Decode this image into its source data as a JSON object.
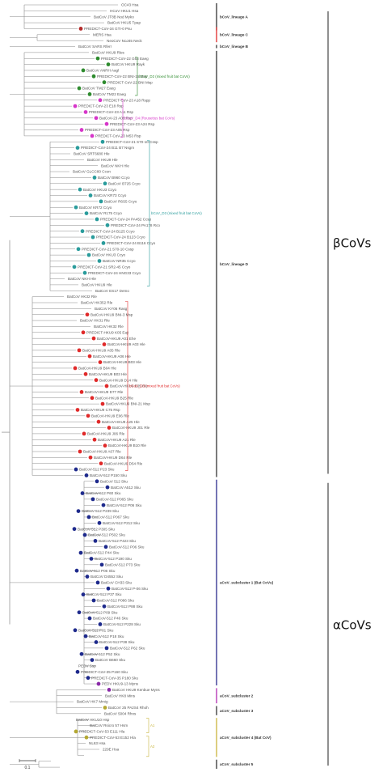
{
  "leaves": [
    {
      "label": "OC43 Hsa",
      "dot": ""
    },
    {
      "label": "HCoV HKU1 Hsa",
      "dot": ""
    },
    {
      "label": "BatCoV JT8B Nod Myko",
      "dot": ""
    },
    {
      "label": "BatCoV HKU5 Tpap",
      "dot": ""
    },
    {
      "label": "PREDICT-CoV-34 GTI-0 Psu",
      "dot": "brown"
    },
    {
      "label": "MERS Hsa",
      "dot": ""
    },
    {
      "label": "NeoCoV NoJ45 Neck",
      "dot": ""
    },
    {
      "label": "BatCoV SARS Rferr",
      "dot": ""
    },
    {
      "label": "BatCoV HKU9 Rles",
      "dot": ""
    },
    {
      "label": "PREDICT-CoV-22 G63 Eaeg",
      "dot": "green"
    },
    {
      "label": "BatCoV HKU9 Rayk",
      "dot": "green"
    },
    {
      "label": "BatCoV ANRH Aagl",
      "dot": "green"
    },
    {
      "label": "PREDICT-CoV-22 BNI-15 Msp",
      "dot": "green"
    },
    {
      "label": "PREDICT-CoV-22 BNI Msp",
      "dot": "green"
    },
    {
      "label": "BatCoV TM27 Eaeg",
      "dot": "green"
    },
    {
      "label": "BatCoV TM22 Eaeg",
      "dot": "green"
    },
    {
      "label": "PREDICT-CoV-23 A18 Rspp",
      "dot": "magenta"
    },
    {
      "label": "PREDICT-CoV-23 E18 Rsp",
      "dot": "magenta"
    },
    {
      "label": "PREDICT-CoV-23 A11 Rsp",
      "dot": "magenta"
    },
    {
      "label": "BatCoV-23 A08 Rsp",
      "dot": "magenta"
    },
    {
      "label": "PREDICT-CoV-23 A24 Rsp",
      "dot": "magenta"
    },
    {
      "label": "PREDICT-CoV-23 A05 Rsp",
      "dot": "magenta"
    },
    {
      "label": "PREDICT-CoV-23 M53 Rsp",
      "dot": "magenta"
    },
    {
      "label": "PREDICT-CoV-21 S70-10 Cssp",
      "dot": "teal"
    },
    {
      "label": "PREDICT-CoV-24 B11 B7 Nsgm",
      "dot": "teal"
    },
    {
      "label": "BatCoV SRT6680 Hle",
      "dot": ""
    },
    {
      "label": "BatCoV HKU9 Hle",
      "dot": ""
    },
    {
      "label": "BatCoV NKH Hle",
      "dot": ""
    },
    {
      "label": "BatCoV GLCC80 Ccon",
      "dot": ""
    },
    {
      "label": "BatCoV B960 Ccyo",
      "dot": "teal"
    },
    {
      "label": "BatCoV B725 Ccyo",
      "dot": "teal"
    },
    {
      "label": "BatCoV HKU3 Ccyo",
      "dot": "teal"
    },
    {
      "label": "BatCoV KR73 Ccyo",
      "dot": "teal"
    },
    {
      "label": "BatCoV R6S5 Ccyo",
      "dot": "teal"
    },
    {
      "label": "BatCoV KR72 Ccyo",
      "dot": "teal"
    },
    {
      "label": "BatCoV R175 Ccyo",
      "dot": "teal"
    },
    {
      "label": "PREDICT-CoV-24 PA452 Ccsp",
      "dot": "teal"
    },
    {
      "label": "PREDICT-CoV-24 PA178 Rco",
      "dot": "teal"
    },
    {
      "label": "PREDICT-CoV-24 B125 Ccyo",
      "dot": "teal"
    },
    {
      "label": "PREDICT-CoV-24 B123 Ccyo",
      "dot": "teal"
    },
    {
      "label": "PREDICT-CoV-24 B116 Ccyo",
      "dot": "teal"
    },
    {
      "label": "PREDICT-CoV-21 S70-10 Cssp",
      "dot": "teal"
    },
    {
      "label": "BatCoV HKU3 Ccyo",
      "dot": "teal"
    },
    {
      "label": "BatCoV NR35 Ccyo",
      "dot": "teal"
    },
    {
      "label": "PREDICT-CoV-21 SR2-45 Ccyo",
      "dot": "teal"
    },
    {
      "label": "PREDICT-CoV-24 HNG33 Ccyo",
      "dot": "teal"
    },
    {
      "label": "BatCoV NKH Hle",
      "dot": ""
    },
    {
      "label": "BatCoV HKU9 Hle",
      "dot": ""
    },
    {
      "label": "BatCoV ES17 Demo",
      "dot": ""
    },
    {
      "label": "BatCoV HK32 Rle",
      "dot": ""
    },
    {
      "label": "BatCoV HK352 Rle",
      "dot": ""
    },
    {
      "label": "BatCoV KY06 Rasg",
      "dot": ""
    },
    {
      "label": "BatCoV-HKU9 BNI-3 Msp",
      "dot": "red"
    },
    {
      "label": "BatCoV HK31 Rle",
      "dot": ""
    },
    {
      "label": "BatCoV HK32 Rle",
      "dot": ""
    },
    {
      "label": "PREDICT-HKU9 K05 Eaji",
      "dot": "red"
    },
    {
      "label": "BatCoV-HKU9 A01 Ehe",
      "dot": "red"
    },
    {
      "label": "BatCoV-HKU9 A03 Hle",
      "dot": "red"
    },
    {
      "label": "BatCoV-HKU9 A05 Rle",
      "dot": "red"
    },
    {
      "label": "BatCoV-HKU9 A06 Hle",
      "dot": "red"
    },
    {
      "label": "BatCoV-HKU9 B03 Hle",
      "dot": "red"
    },
    {
      "label": "BatCoV-HKU9 B04 Hle",
      "dot": "red"
    },
    {
      "label": "BatCoV-HKU9 B03 Hle",
      "dot": "red"
    },
    {
      "label": "BatCoV-HKU9 D14 Hle",
      "dot": "red"
    },
    {
      "label": "BatCoV-HKU9 E05 Rle",
      "dot": "red"
    },
    {
      "label": "BatCoV-HKU9 D77 Rle",
      "dot": "red"
    },
    {
      "label": "BatCoV-HKU9 B25 Rle",
      "dot": "red"
    },
    {
      "label": "BatCoV-HKU9 BNI-21 Msp",
      "dot": "red"
    },
    {
      "label": "BatCoV-HKU9 C75 Rsp",
      "dot": "red"
    },
    {
      "label": "BatCoV-HKU9 E06 Rle",
      "dot": "red"
    },
    {
      "label": "BatCoV-HKU9 A25 Hle",
      "dot": "red"
    },
    {
      "label": "BatCoV-HKU9 J01 Rle",
      "dot": "red"
    },
    {
      "label": "BatCoV-HKU9 J06 Rle",
      "dot": "red"
    },
    {
      "label": "BatCoV-HKU9 A21 Rle",
      "dot": "red"
    },
    {
      "label": "BatCoV-HKU9 B10 Rle",
      "dot": "red"
    },
    {
      "label": "BatCoV-HKU9 A07 Rle",
      "dot": "red"
    },
    {
      "label": "BatCoV-HKU9 D64 Rle",
      "dot": "red"
    },
    {
      "label": "BatCoV-HKU9 D54 Rle",
      "dot": "red"
    },
    {
      "label": "BatCoV-512 P23 Sku",
      "dot": "navy"
    },
    {
      "label": "BatCoV-512 P150 Sku",
      "dot": "navy"
    },
    {
      "label": "BatCoV 512 Sku",
      "dot": "navy"
    },
    {
      "label": "BatCoV A512 Sku",
      "dot": "navy"
    },
    {
      "label": "BatCoV-512 P60 Sku",
      "dot": "navy"
    },
    {
      "label": "BatCoV-512 P065 Sku",
      "dot": "navy"
    },
    {
      "label": "BatCoV-512 P06 Sku",
      "dot": "navy"
    },
    {
      "label": "BatCoV-512 P239 Sku",
      "dot": "navy"
    },
    {
      "label": "BatCoV-512 P067 Sku",
      "dot": "navy"
    },
    {
      "label": "BatCoV-512 P212 Sku",
      "dot": "navy"
    },
    {
      "label": "BatCoV-512 P305 Sku",
      "dot": "navy"
    },
    {
      "label": "BatCoV-512 P502 Sku",
      "dot": "navy"
    },
    {
      "label": "BatCoV-512 P423 Sku",
      "dot": "navy"
    },
    {
      "label": "BatCoV-512 P06 Sku",
      "dot": "navy"
    },
    {
      "label": "BatCoV-512 P44 Sku",
      "dot": "navy"
    },
    {
      "label": "BatCoV-512 P190 Sku",
      "dot": "navy"
    },
    {
      "label": "BatCoV-512 P73 Sku",
      "dot": "navy"
    },
    {
      "label": "BatCoV-512 P06 Sku",
      "dot": "navy"
    },
    {
      "label": "BatCoV D4552 Sku",
      "dot": "navy"
    },
    {
      "label": "BatCoV CH33 Sku",
      "dot": "navy"
    },
    {
      "label": "BatCoV-512 P-06 Sku",
      "dot": "navy"
    },
    {
      "label": "BatCoV-512 P37 Sku",
      "dot": "navy"
    },
    {
      "label": "BatCoV-512 P086 Sku",
      "dot": "navy"
    },
    {
      "label": "BatCoV-512 P88 Sku",
      "dot": "navy"
    },
    {
      "label": "BatCoV-512 P09 Sku",
      "dot": "navy"
    },
    {
      "label": "BatCoV-512 P46 Sku",
      "dot": "navy"
    },
    {
      "label": "BatCoV-512 P228 Sku",
      "dot": "navy"
    },
    {
      "label": "BatCoV-512 P81 Sku",
      "dot": "navy"
    },
    {
      "label": "BatCoV-512 P18 Sku",
      "dot": "navy"
    },
    {
      "label": "BatCoV-512 P38 Sku",
      "dot": "navy"
    },
    {
      "label": "BatCoV-512 P62 Sku",
      "dot": "navy"
    },
    {
      "label": "BatCoV-512 P52 Sku",
      "dot": "navy"
    },
    {
      "label": "BatCoV B660 Sku",
      "dot": "navy"
    },
    {
      "label": "PEDV Ssp",
      "dot": ""
    },
    {
      "label": "PREDICT-CoV-35 P160 Sku",
      "dot": "navy"
    },
    {
      "label": "PREDICT-CoV-35 P180 Sku",
      "dot": "navy"
    },
    {
      "label": "PEDV HKU9-13 Myns",
      "dot": "purple"
    },
    {
      "label": "BatCoV HKU9 Kenbue Myns",
      "dot": "purple"
    },
    {
      "label": "BatCoV HK8 Mins",
      "dot": ""
    },
    {
      "label": "BatCoV HK7 Mmig",
      "dot": ""
    },
    {
      "label": "BatCoV 25 PA2S4 Rhoh",
      "dot": "olive"
    },
    {
      "label": "BatCoV 5004 Rhns",
      "dot": ""
    },
    {
      "label": "BatCoV HKU10 Hsp",
      "dot": ""
    },
    {
      "label": "BatCoV Rsicro 57 Hsm",
      "dot": ""
    },
    {
      "label": "PREDICT-CoV-53 E111 Hla",
      "dot": "olive"
    },
    {
      "label": "PREDICT-CoV-53 E152 Hla",
      "dot": "olive"
    },
    {
      "label": "NL63 Hsa",
      "dot": ""
    },
    {
      "label": "229E Hsa",
      "dot": ""
    }
  ],
  "clades": [
    {
      "label": "bCoV_D2 (mixed fruit bat CoVs)",
      "color": "#2e8b2e",
      "first": 9,
      "last": 15,
      "suffix": ""
    },
    {
      "label": "bCoV_D4 (Rousettus bat CoVs)",
      "color": "#d636c9",
      "first": 16,
      "last": 22,
      "suffix": ""
    },
    {
      "label": "bCoV_D3 (mixed fruit bat CoVs)",
      "color": "#2a9c9c",
      "first": 23,
      "last": 47,
      "suffix": ""
    },
    {
      "label": "bCoV_D3 (mixed fruit bat CoVs)",
      "color": "#e02a2a",
      "first": 50,
      "last": 78,
      "suffix": ""
    },
    {
      "label": "",
      "color": "#c8b43c",
      "first": 120,
      "last": 122,
      "suffix": "A1"
    },
    {
      "label": "",
      "color": "#c8b43c",
      "first": 123,
      "last": 126,
      "suffix": "A2"
    }
  ],
  "lineages": [
    {
      "label": "bCoV_lineage A",
      "color": "#333333",
      "first": 0,
      "last": 4
    },
    {
      "label": "bCoV_lineage C",
      "color": "#e02a2a",
      "first": 4,
      "last": 6
    },
    {
      "label": "bCoV_lineage B",
      "color": "#333333",
      "first": 7,
      "last": 7
    },
    {
      "label": "bCoV_lineage D",
      "color": "#333333",
      "first": 8,
      "last": 79
    },
    {
      "label": "aCoV_subcluster 1 (Bat CoVs)",
      "color": "#2a2a8c",
      "first": 80,
      "last": 114
    },
    {
      "label": "aCoV_subcluster 2",
      "color": "#b02ab0",
      "first": 115,
      "last": 117
    },
    {
      "label": "aCoV_subcluster 3",
      "color": "#333333",
      "first": 118,
      "last": 119
    },
    {
      "label": "aCoV_subcluster 4 (Bat CoV)",
      "color": "#c8b43c",
      "first": 120,
      "last": 126
    },
    {
      "label": "aCoV_subcluster 5",
      "color": "#333333",
      "first": 127,
      "last": 128
    }
  ],
  "groups": [
    {
      "label": "βCoVs",
      "first": 0,
      "last": 79
    },
    {
      "label": "αCoVs",
      "first": 80,
      "last": 128
    }
  ],
  "scale": {
    "label": "0.1"
  },
  "colors": {
    "green": "#2e8b2e",
    "magenta": "#d636c9",
    "teal": "#2a9c9c",
    "red": "#e02a2a",
    "navy": "#1e2a8c",
    "purple": "#8a2aa8",
    "olive": "#b4a832",
    "brown": "#b42a2a",
    "branch": "#8a8a8a"
  }
}
